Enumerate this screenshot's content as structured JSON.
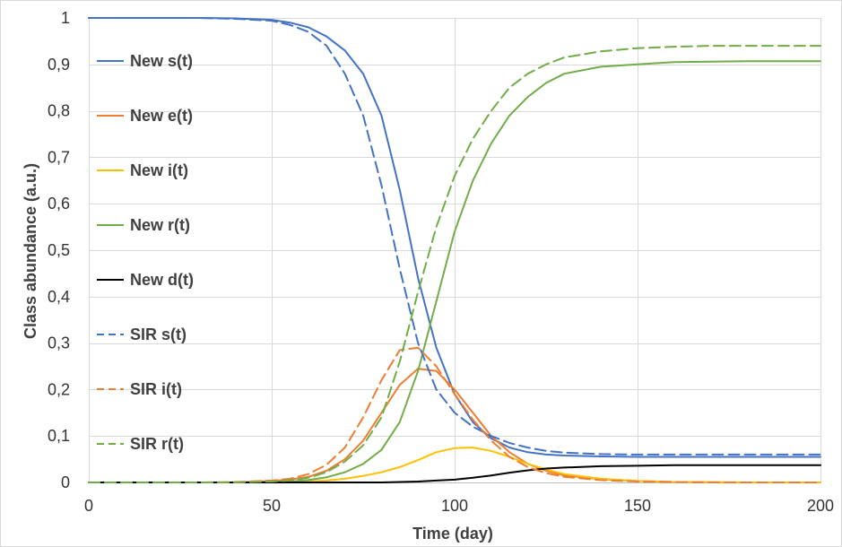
{
  "chart_data": {
    "type": "line",
    "title": "",
    "xlabel": "Time (day)",
    "ylabel": "Class abundance (a.u.)",
    "xlim": [
      0,
      200
    ],
    "ylim": [
      0,
      1
    ],
    "x_ticks": [
      0,
      50,
      100,
      150,
      200
    ],
    "x_tick_labels": [
      "0",
      "50",
      "100",
      "150",
      "200"
    ],
    "y_ticks": [
      0,
      0.1,
      0.2,
      0.3,
      0.4,
      0.5,
      0.6,
      0.7,
      0.8,
      0.9,
      1
    ],
    "y_tick_labels": [
      "0",
      "0,1",
      "0,2",
      "0,3",
      "0,4",
      "0,5",
      "0,6",
      "0,7",
      "0,8",
      "0,9",
      "1"
    ],
    "grid": true,
    "legend_position": "left-inside",
    "x": [
      0,
      10,
      20,
      30,
      40,
      50,
      55,
      60,
      65,
      70,
      75,
      80,
      85,
      90,
      95,
      100,
      105,
      110,
      115,
      120,
      125,
      130,
      140,
      150,
      160,
      170,
      180,
      190,
      200
    ],
    "series": [
      {
        "name": "New s(t)",
        "color": "#4472C4",
        "dash": "solid",
        "values": [
          1,
          1,
          1,
          1,
          0.999,
          0.996,
          0.99,
          0.98,
          0.96,
          0.93,
          0.88,
          0.79,
          0.63,
          0.44,
          0.29,
          0.19,
          0.13,
          0.095,
          0.075,
          0.065,
          0.06,
          0.058,
          0.056,
          0.055,
          0.055,
          0.055,
          0.055,
          0.055,
          0.055
        ]
      },
      {
        "name": "New e(t)",
        "color": "#ED7D31",
        "dash": "solid",
        "values": [
          0,
          0,
          0,
          0,
          0,
          0.003,
          0.006,
          0.012,
          0.025,
          0.05,
          0.09,
          0.15,
          0.21,
          0.245,
          0.24,
          0.2,
          0.15,
          0.1,
          0.065,
          0.04,
          0.025,
          0.015,
          0.007,
          0.003,
          0.001,
          0.0005,
          0,
          0,
          0
        ]
      },
      {
        "name": "New i(t)",
        "color": "#FFC000",
        "dash": "solid",
        "values": [
          0,
          0,
          0,
          0,
          0,
          0,
          0.001,
          0.002,
          0.004,
          0.008,
          0.014,
          0.022,
          0.033,
          0.048,
          0.065,
          0.074,
          0.075,
          0.068,
          0.055,
          0.04,
          0.028,
          0.018,
          0.008,
          0.003,
          0.001,
          0.0005,
          0,
          0,
          0
        ]
      },
      {
        "name": "New r(t)",
        "color": "#70AD47",
        "dash": "solid",
        "values": [
          0,
          0,
          0,
          0,
          0,
          0.001,
          0.002,
          0.005,
          0.011,
          0.022,
          0.04,
          0.07,
          0.13,
          0.24,
          0.39,
          0.54,
          0.65,
          0.73,
          0.79,
          0.83,
          0.86,
          0.88,
          0.895,
          0.9,
          0.905,
          0.906,
          0.907,
          0.907,
          0.907
        ]
      },
      {
        "name": "New d(t)",
        "color": "#000000",
        "dash": "solid",
        "values": [
          0,
          0,
          0,
          0,
          0,
          0,
          0,
          0,
          0,
          0,
          0,
          0,
          0.001,
          0.002,
          0.004,
          0.006,
          0.01,
          0.015,
          0.021,
          0.026,
          0.03,
          0.032,
          0.035,
          0.036,
          0.037,
          0.037,
          0.037,
          0.037,
          0.037
        ]
      },
      {
        "name": "SIR s(t)",
        "color": "#4472C4",
        "dash": "dashed",
        "values": [
          1,
          1,
          1,
          1,
          0.998,
          0.994,
          0.985,
          0.97,
          0.94,
          0.88,
          0.79,
          0.64,
          0.46,
          0.3,
          0.2,
          0.15,
          0.12,
          0.1,
          0.085,
          0.075,
          0.068,
          0.064,
          0.061,
          0.06,
          0.06,
          0.06,
          0.06,
          0.06,
          0.06
        ]
      },
      {
        "name": "SIR i(t)",
        "color": "#ED7D31",
        "dash": "dashed",
        "values": [
          0,
          0,
          0,
          0,
          0.001,
          0.004,
          0.008,
          0.018,
          0.038,
          0.075,
          0.14,
          0.22,
          0.285,
          0.29,
          0.25,
          0.19,
          0.135,
          0.09,
          0.055,
          0.033,
          0.02,
          0.012,
          0.005,
          0.002,
          0.001,
          0,
          0,
          0,
          0
        ]
      },
      {
        "name": "SIR r(t)",
        "color": "#70AD47",
        "dash": "dashed",
        "values": [
          0,
          0,
          0,
          0,
          0,
          0.002,
          0.004,
          0.01,
          0.022,
          0.045,
          0.08,
          0.14,
          0.26,
          0.41,
          0.55,
          0.66,
          0.74,
          0.8,
          0.85,
          0.88,
          0.9,
          0.915,
          0.928,
          0.935,
          0.938,
          0.94,
          0.94,
          0.94,
          0.94
        ]
      }
    ]
  }
}
